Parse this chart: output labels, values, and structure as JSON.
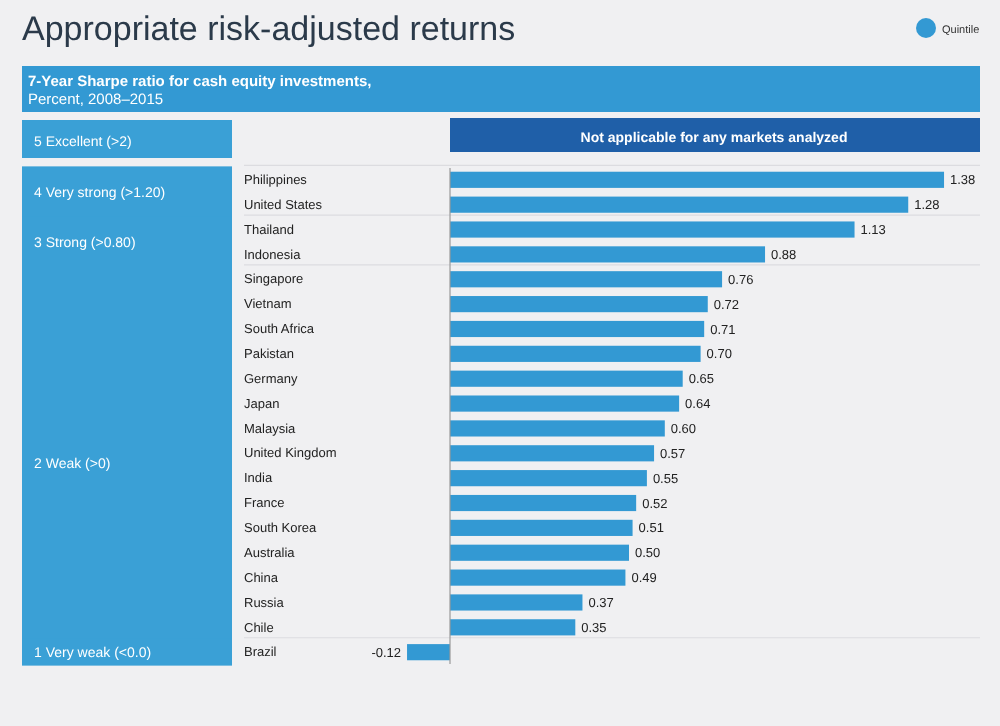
{
  "chart_data": {
    "type": "bar",
    "orientation": "horizontal",
    "title": "Appropriate risk-adjusted returns",
    "subtitle": "7-Year Sharpe ratio for cash equity investments,\nPercent, 2008–2015",
    "categories": [
      "Philippines",
      "United States",
      "Thailand",
      "Indonesia",
      "Singapore",
      "Vietnam",
      "South Africa",
      "Pakistan",
      "Germany",
      "Japan",
      "Malaysia",
      "United Kingdom",
      "India",
      "France",
      "South Korea",
      "Australia",
      "China",
      "Russia",
      "Chile",
      "Brazil"
    ],
    "values": [
      1.38,
      1.28,
      1.13,
      0.88,
      0.76,
      0.72,
      0.71,
      0.7,
      0.65,
      0.64,
      0.6,
      0.57,
      0.55,
      0.52,
      0.51,
      0.5,
      0.49,
      0.37,
      0.35,
      -0.12
    ],
    "value_labels": [
      "1.38",
      "1.28",
      "1.13",
      "0.88",
      "0.76",
      "0.72",
      "0.71",
      "0.70",
      "0.65",
      "0.64",
      "0.60",
      "0.57",
      "0.55",
      "0.52",
      "0.51",
      "0.50",
      "0.49",
      "0.37",
      "0.35",
      "-0.12"
    ],
    "color": "#3399d3",
    "annotations": [
      "5  Excellent (>2)",
      "Not applicable for any markets analyzed",
      "Quintile",
      "4  Very strong (>1.20)",
      "3  Strong (>0.80)",
      "2  Weak (>0)",
      "1  Very weak (<0.0)"
    ]
  }
}
